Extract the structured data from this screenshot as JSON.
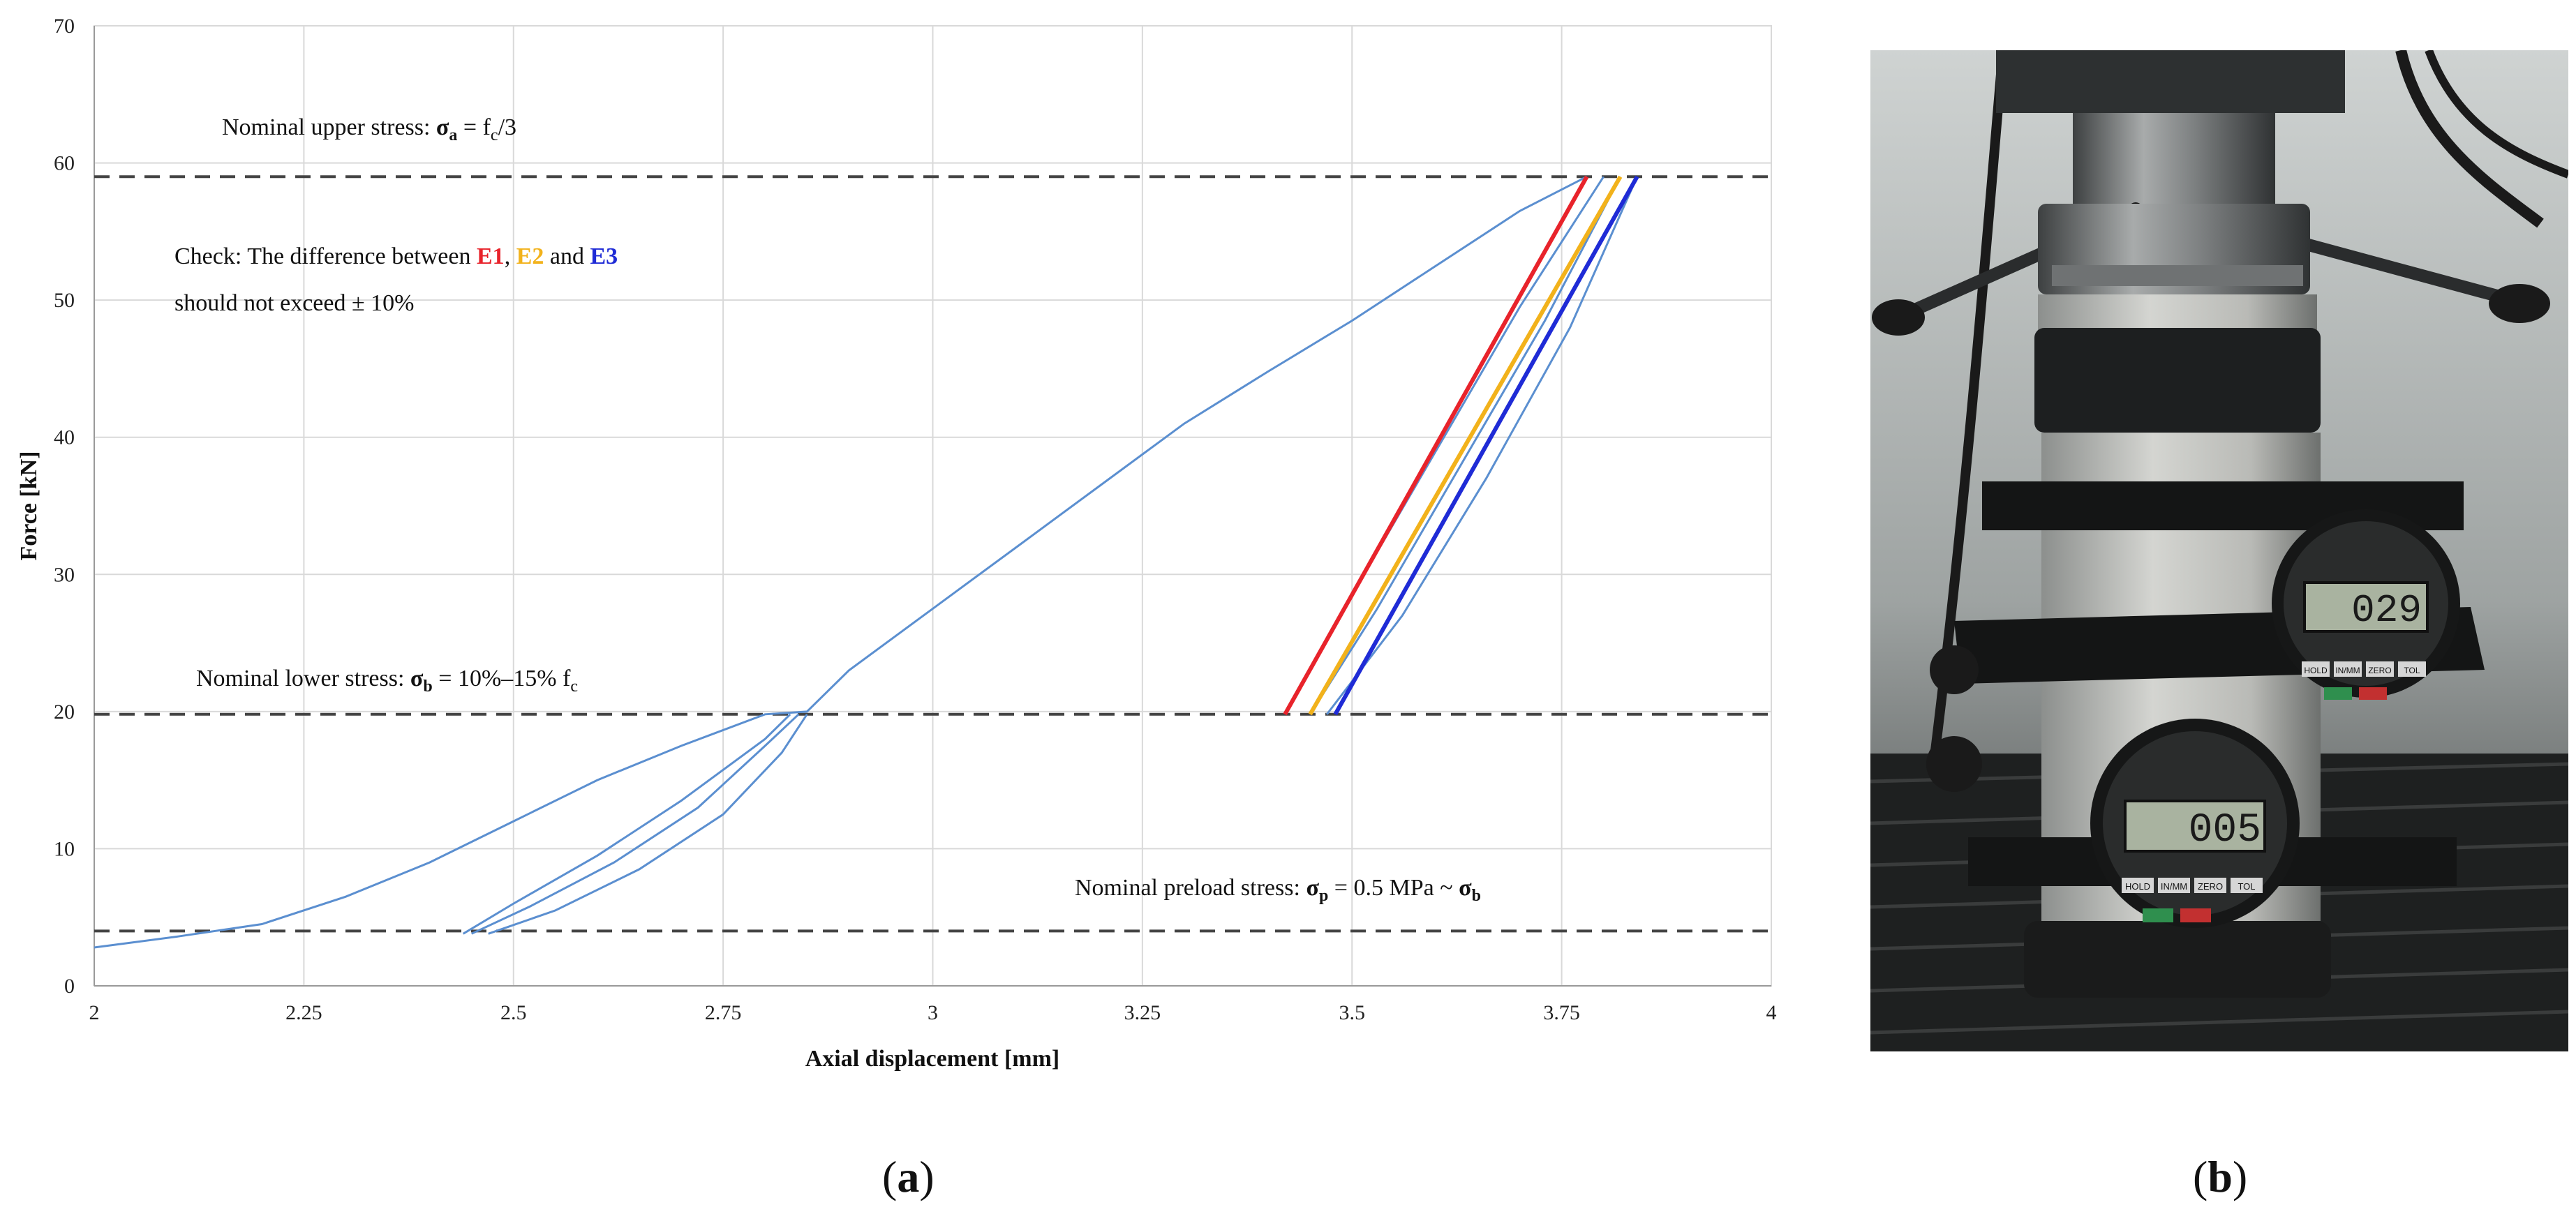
{
  "chart_data": {
    "type": "line",
    "xlabel": "Axial displacement [mm]",
    "ylabel": "Force [kN]",
    "xlim": [
      2,
      4
    ],
    "ylim": [
      0,
      70
    ],
    "x_ticks": [
      "2",
      "2.25",
      "2.5",
      "2.75",
      "3",
      "3.25",
      "3.5",
      "3.75",
      "4"
    ],
    "y_ticks": [
      "0",
      "10",
      "20",
      "30",
      "40",
      "50",
      "60",
      "70"
    ],
    "grid": true,
    "reference_lines": [
      {
        "y": 59,
        "style": "dashed"
      },
      {
        "y": 19.8,
        "style": "dashed"
      },
      {
        "y": 4,
        "style": "dashed"
      }
    ],
    "series": [
      {
        "color": "#5b8fd0",
        "x": [
          2.0,
          2.1,
          2.2,
          2.3,
          2.4,
          2.5,
          2.6,
          2.7,
          2.8,
          2.85,
          2.9,
          3.0,
          3.1,
          3.2,
          3.3,
          3.4,
          3.5,
          3.6,
          3.7,
          3.78
        ],
        "y": [
          2.8,
          3.6,
          4.5,
          6.5,
          9.0,
          12.0,
          15.0,
          17.5,
          19.8,
          20.0,
          23.0,
          27.5,
          32.0,
          36.5,
          41.0,
          44.8,
          48.5,
          52.5,
          56.5,
          59.0
        ]
      },
      {
        "color": "#5b8fd0",
        "x": [
          2.44,
          2.5,
          2.6,
          2.7,
          2.8,
          2.83
        ],
        "y": [
          3.8,
          6.0,
          9.5,
          13.5,
          18.0,
          19.8
        ]
      },
      {
        "color": "#5b8fd0",
        "x": [
          2.45,
          2.52,
          2.62,
          2.72,
          2.8,
          2.84
        ],
        "y": [
          3.8,
          5.8,
          9.0,
          13.0,
          17.5,
          19.8
        ]
      },
      {
        "color": "#5b8fd0",
        "x": [
          2.47,
          2.55,
          2.65,
          2.75,
          2.82,
          2.85
        ],
        "y": [
          3.8,
          5.5,
          8.5,
          12.5,
          17.0,
          19.8
        ]
      },
      {
        "color": "#5b8fd0",
        "x": [
          3.42,
          3.5,
          3.6,
          3.7,
          3.8
        ],
        "y": [
          19.8,
          28.5,
          39.0,
          49.5,
          59.0
        ]
      },
      {
        "color": "#5b8fd0",
        "x": [
          3.45,
          3.53,
          3.63,
          3.73,
          3.82
        ],
        "y": [
          19.8,
          27.5,
          38.0,
          48.5,
          59.0
        ]
      },
      {
        "color": "#5b8fd0",
        "x": [
          3.47,
          3.56,
          3.66,
          3.76,
          3.84
        ],
        "y": [
          19.8,
          27.0,
          37.0,
          48.0,
          59.0
        ]
      },
      {
        "name": "E1",
        "color": "#e8232b",
        "x": [
          3.42,
          3.78
        ],
        "y": [
          19.8,
          59.0
        ]
      },
      {
        "name": "E2",
        "color": "#f2b21b",
        "x": [
          3.45,
          3.82
        ],
        "y": [
          19.8,
          59.0
        ]
      },
      {
        "name": "E3",
        "color": "#1f2bd6",
        "x": [
          3.48,
          3.84
        ],
        "y": [
          19.8,
          59.0
        ]
      }
    ],
    "annotations": {
      "upper_stress": {
        "prefix": "Nominal upper  stress: ",
        "sym": "σ",
        "sub": "a",
        "mid": " = f",
        "sub2": "c",
        "suffix": "/3"
      },
      "check_line1": {
        "prefix": "Check: The difference between ",
        "e1": "E1",
        "sep1": ", ",
        "e2": "E2",
        "sep2": " and ",
        "e3": "E3"
      },
      "check_line2": "should not exceed ± 10%",
      "lower_stress": {
        "prefix": "Nominal lower stress: ",
        "sym": "σ",
        "sub": "b",
        "mid": " = 10%–15% f",
        "sub2": "c"
      },
      "preload_stress": {
        "prefix": "Nominal preload stress: ",
        "sym": "σ",
        "sub": "p",
        "mid": " = 0.5 MPa ~ ",
        "sym2": "σ",
        "sub2": "b"
      }
    }
  },
  "captions": {
    "a_open": "(",
    "a_letter": "a",
    "a_close": ")",
    "b_open": "(",
    "b_letter": "b",
    "b_close": ")"
  },
  "photo": {
    "gauge_top_reading": "029",
    "gauge_bottom_reading": "005",
    "gauge_button_labels": [
      "HOLD",
      "IN/MM",
      "ZERO",
      "TOL"
    ]
  }
}
